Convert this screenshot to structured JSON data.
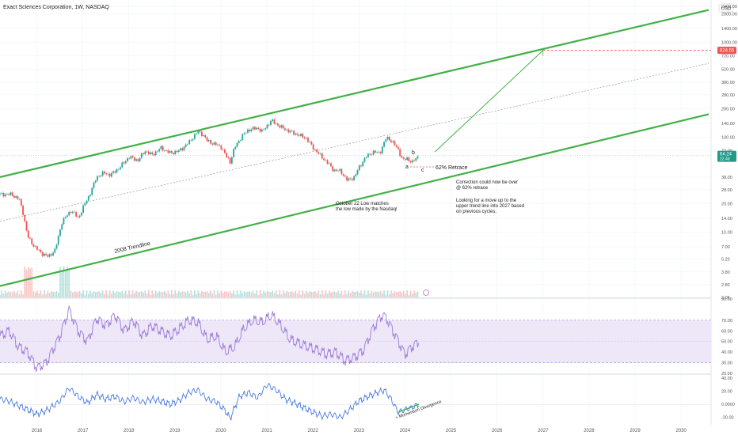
{
  "header": {
    "title": "Exact Sciences Corporation, 1W, NASDAQ",
    "currency": "USD"
  },
  "colors": {
    "green": "#43b047",
    "up": "#26a69a",
    "down": "#ef5350",
    "rsi": "#9c7ad6",
    "rsi_band": "#ede7f8",
    "mom": "#4c7be0",
    "red_dash": "#f04b4b",
    "grid": "#eef0f3",
    "axis_text": "#555555",
    "price_badge": "#1f9a8c",
    "target_badge": "#ef5350"
  },
  "price_axis": {
    "scale": "log",
    "ticks": [
      "2400.00",
      "2000.00",
      "1400.00",
      "1000.00",
      "720.00",
      "520.00",
      "380.00",
      "280.00",
      "200.00",
      "140.00",
      "100.00",
      "72.00",
      "38.00",
      "28.00",
      "20.00",
      "14.00",
      "10.00",
      "7.00",
      "5.20",
      "3.80",
      "2.80",
      "2.05"
    ]
  },
  "rsi_axis": {
    "ticks": [
      "90.00",
      "70.00",
      "60.00",
      "50.00",
      "40.00",
      "30.00",
      "20.00"
    ],
    "range": [
      20,
      90
    ],
    "band": [
      30,
      70
    ]
  },
  "momentum_axis": {
    "ticks": [
      "40.00",
      "20.00",
      "0.0000",
      "-20.00"
    ],
    "range": [
      -30,
      45
    ]
  },
  "time_axis": {
    "ticks": [
      "2016",
      "2017",
      "2018",
      "2019",
      "2020",
      "2021",
      "2022",
      "2023",
      "2024",
      "2025",
      "2026",
      "2027",
      "2028",
      "2029",
      "2030"
    ]
  },
  "badges": {
    "target": "824.55",
    "price": "64.24",
    "price_sub": "22.4d"
  },
  "annotations": {
    "trendline": "2008 Trendline",
    "oct_low": [
      "October 22 Low matches",
      "the low made by the Nasdaq!"
    ],
    "retrace": "62% Retrace",
    "wave_a": "a",
    "wave_b": "b",
    "wave_c": "c",
    "correction": [
      "Correction could now be over",
      "@ 62% retrace"
    ],
    "looking": [
      "Looking for a move up to the",
      "upper trend line into 2027 based",
      "on previous cycles."
    ],
    "divergence": "+ Momentum Divergence"
  },
  "chart_data": [
    {
      "type": "line",
      "name": "price",
      "title": "Exact Sciences Corporation, 1W, NASDAQ",
      "yscale": "log",
      "ylim": [
        2.05,
        2400
      ],
      "xlim": [
        2015.2,
        2030.6
      ],
      "x": [
        2015.2,
        2015.45,
        2015.62,
        2015.7,
        2015.8,
        2015.95,
        2016.1,
        2016.25,
        2016.4,
        2016.55,
        2016.75,
        2016.9,
        2017.0,
        2017.15,
        2017.3,
        2017.45,
        2017.6,
        2017.8,
        2018.0,
        2018.2,
        2018.35,
        2018.5,
        2018.7,
        2018.9,
        2019.1,
        2019.3,
        2019.5,
        2019.6,
        2019.7,
        2019.85,
        2020.0,
        2020.1,
        2020.2,
        2020.3,
        2020.45,
        2020.6,
        2020.8,
        2020.9,
        2021.0,
        2021.1,
        2021.3,
        2021.5,
        2021.7,
        2021.85,
        2022.0,
        2022.15,
        2022.3,
        2022.45,
        2022.6,
        2022.75,
        2022.9,
        2023.0,
        2023.15,
        2023.3,
        2023.45,
        2023.6,
        2023.7,
        2023.85,
        2023.95,
        2024.05,
        2024.15,
        2024.3
      ],
      "values": [
        25,
        25,
        22,
        16,
        9,
        7,
        6,
        5.5,
        6.5,
        13,
        17,
        14,
        18,
        25,
        38,
        42,
        40,
        48,
        62,
        57,
        72,
        65,
        77,
        68,
        72,
        88,
        115,
        108,
        92,
        85,
        80,
        65,
        55,
        78,
        102,
        120,
        125,
        115,
        132,
        150,
        128,
        115,
        105,
        98,
        78,
        65,
        55,
        45,
        44,
        35,
        38,
        48,
        62,
        70,
        68,
        100,
        92,
        75,
        57,
        60,
        54,
        64.24
      ]
    },
    {
      "type": "line",
      "name": "upper channel",
      "x": [
        2015.2,
        2030.6
      ],
      "values": [
        38,
        2200
      ]
    },
    {
      "type": "line",
      "name": "lower channel",
      "x": [
        2015.2,
        2030.6
      ],
      "values": [
        2.7,
        175
      ]
    },
    {
      "type": "line",
      "name": "midline",
      "x": [
        2015.2,
        2030.6
      ],
      "values": [
        13,
        600
      ]
    },
    {
      "type": "line",
      "name": "projection",
      "x": [
        2024.65,
        2027.0
      ],
      "values": [
        70,
        824.55
      ]
    },
    {
      "type": "line",
      "name": "RSI",
      "ylim": [
        20,
        90
      ],
      "x": [
        2015.2,
        2015.4,
        2015.6,
        2015.8,
        2016.0,
        2016.2,
        2016.5,
        2016.7,
        2016.9,
        2017.1,
        2017.3,
        2017.5,
        2017.7,
        2017.9,
        2018.1,
        2018.3,
        2018.5,
        2018.7,
        2018.9,
        2019.1,
        2019.3,
        2019.5,
        2019.7,
        2019.9,
        2020.1,
        2020.3,
        2020.5,
        2020.7,
        2020.9,
        2021.1,
        2021.3,
        2021.5,
        2021.7,
        2021.9,
        2022.1,
        2022.3,
        2022.5,
        2022.7,
        2022.9,
        2023.1,
        2023.3,
        2023.5,
        2023.6,
        2023.8,
        2024.0,
        2024.15,
        2024.3
      ],
      "values": [
        55,
        60,
        45,
        40,
        25,
        30,
        55,
        80,
        60,
        50,
        72,
        65,
        75,
        60,
        70,
        55,
        65,
        60,
        55,
        62,
        70,
        68,
        52,
        55,
        40,
        45,
        62,
        70,
        68,
        75,
        65,
        52,
        48,
        45,
        42,
        38,
        40,
        32,
        35,
        42,
        62,
        75,
        72,
        55,
        38,
        45,
        50
      ]
    },
    {
      "type": "line",
      "name": "Momentum",
      "ylim": [
        -30,
        45
      ],
      "x": [
        2015.2,
        2015.4,
        2015.6,
        2015.8,
        2016.0,
        2016.2,
        2016.5,
        2016.7,
        2016.9,
        2017.1,
        2017.3,
        2017.5,
        2017.7,
        2017.9,
        2018.1,
        2018.3,
        2018.5,
        2018.7,
        2018.9,
        2019.1,
        2019.3,
        2019.5,
        2019.7,
        2019.9,
        2020.1,
        2020.2,
        2020.4,
        2020.6,
        2020.8,
        2021.0,
        2021.2,
        2021.4,
        2021.6,
        2021.8,
        2022.0,
        2022.2,
        2022.4,
        2022.6,
        2022.8,
        2023.0,
        2023.2,
        2023.4,
        2023.55,
        2023.7,
        2023.85,
        2024.0,
        2024.15,
        2024.3
      ],
      "values": [
        8,
        5,
        -2,
        -8,
        -15,
        -10,
        5,
        25,
        12,
        2,
        15,
        8,
        12,
        4,
        10,
        3,
        8,
        5,
        0,
        6,
        18,
        22,
        8,
        4,
        -10,
        -22,
        12,
        18,
        10,
        30,
        22,
        8,
        2,
        -5,
        -12,
        -18,
        -15,
        -20,
        -8,
        5,
        12,
        18,
        22,
        8,
        -12,
        -8,
        -5,
        0
      ]
    }
  ]
}
